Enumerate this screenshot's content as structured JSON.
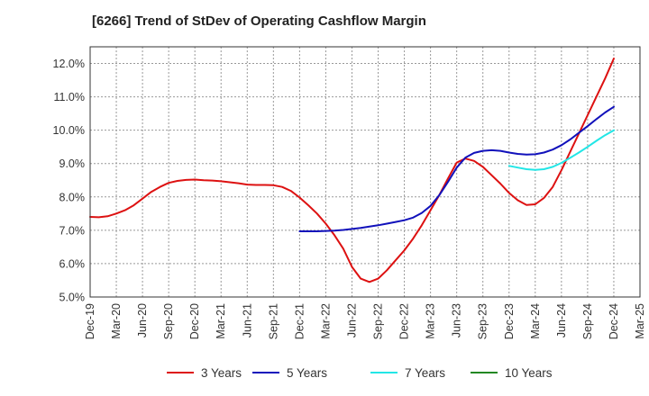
{
  "chart_data": {
    "type": "line",
    "title": "[6266]  Trend of StDev of Operating Cashflow Margin",
    "xlabel": "",
    "ylabel": "",
    "ylim": [
      5.0,
      12.5
    ],
    "yticks": [
      5.0,
      6.0,
      7.0,
      8.0,
      9.0,
      10.0,
      11.0,
      12.0
    ],
    "ytick_labels": [
      "5.0%",
      "6.0%",
      "7.0%",
      "8.0%",
      "9.0%",
      "10.0%",
      "11.0%",
      "12.0%"
    ],
    "x_categories": [
      "Dec-19",
      "Mar-20",
      "Jun-20",
      "Sep-20",
      "Dec-20",
      "Mar-21",
      "Jun-21",
      "Sep-21",
      "Dec-21",
      "Mar-22",
      "Jun-22",
      "Sep-22",
      "Dec-22",
      "Mar-23",
      "Jun-23",
      "Sep-23",
      "Dec-23",
      "Mar-24",
      "Jun-24",
      "Sep-24",
      "Dec-24",
      "Mar-25"
    ],
    "grid": true,
    "legend_position": "bottom",
    "series": [
      {
        "name": "3 Years",
        "color": "#dd1111",
        "points": [
          [
            "Dec-19",
            7.4
          ],
          [
            "Jan-20",
            7.39
          ],
          [
            "Feb-20",
            7.42
          ],
          [
            "Mar-20",
            7.5
          ],
          [
            "Apr-20",
            7.6
          ],
          [
            "May-20",
            7.75
          ],
          [
            "Jun-20",
            7.95
          ],
          [
            "Jul-20",
            8.15
          ],
          [
            "Aug-20",
            8.3
          ],
          [
            "Sep-20",
            8.42
          ],
          [
            "Oct-20",
            8.48
          ],
          [
            "Nov-20",
            8.51
          ],
          [
            "Dec-20",
            8.52
          ],
          [
            "Jan-21",
            8.5
          ],
          [
            "Feb-21",
            8.49
          ],
          [
            "Mar-21",
            8.47
          ],
          [
            "Apr-21",
            8.44
          ],
          [
            "May-21",
            8.41
          ],
          [
            "Jun-21",
            8.37
          ],
          [
            "Jul-21",
            8.36
          ],
          [
            "Aug-21",
            8.36
          ],
          [
            "Sep-21",
            8.35
          ],
          [
            "Oct-21",
            8.3
          ],
          [
            "Nov-21",
            8.18
          ],
          [
            "Dec-21",
            7.98
          ],
          [
            "Jan-22",
            7.75
          ],
          [
            "Feb-22",
            7.5
          ],
          [
            "Mar-22",
            7.2
          ],
          [
            "Apr-22",
            6.85
          ],
          [
            "May-22",
            6.45
          ],
          [
            "Jun-22",
            5.9
          ],
          [
            "Jul-22",
            5.55
          ],
          [
            "Aug-22",
            5.45
          ],
          [
            "Sep-22",
            5.55
          ],
          [
            "Oct-22",
            5.8
          ],
          [
            "Nov-22",
            6.1
          ],
          [
            "Dec-22",
            6.4
          ],
          [
            "Jan-23",
            6.75
          ],
          [
            "Feb-23",
            7.15
          ],
          [
            "Mar-23",
            7.6
          ],
          [
            "Apr-23",
            8.05
          ],
          [
            "May-23",
            8.55
          ],
          [
            "Jun-23",
            9.03
          ],
          [
            "Jul-23",
            9.15
          ],
          [
            "Aug-23",
            9.08
          ],
          [
            "Sep-23",
            8.9
          ],
          [
            "Oct-23",
            8.65
          ],
          [
            "Nov-23",
            8.4
          ],
          [
            "Dec-23",
            8.12
          ],
          [
            "Jan-24",
            7.9
          ],
          [
            "Feb-24",
            7.76
          ],
          [
            "Mar-24",
            7.78
          ],
          [
            "Apr-24",
            7.97
          ],
          [
            "May-24",
            8.3
          ],
          [
            "Jun-24",
            8.8
          ],
          [
            "Jul-24",
            9.35
          ],
          [
            "Aug-24",
            9.9
          ],
          [
            "Sep-24",
            10.45
          ],
          [
            "Oct-24",
            11.0
          ],
          [
            "Nov-24",
            11.55
          ],
          [
            "Dec-24",
            12.15
          ]
        ]
      },
      {
        "name": "5 Years",
        "color": "#1111bb",
        "points": [
          [
            "Dec-21",
            6.97
          ],
          [
            "Jan-22",
            6.97
          ],
          [
            "Feb-22",
            6.97
          ],
          [
            "Mar-22",
            6.98
          ],
          [
            "Apr-22",
            6.99
          ],
          [
            "May-22",
            7.01
          ],
          [
            "Jun-22",
            7.04
          ],
          [
            "Jul-22",
            7.07
          ],
          [
            "Aug-22",
            7.11
          ],
          [
            "Sep-22",
            7.15
          ],
          [
            "Oct-22",
            7.2
          ],
          [
            "Nov-22",
            7.25
          ],
          [
            "Dec-22",
            7.3
          ],
          [
            "Jan-23",
            7.38
          ],
          [
            "Feb-23",
            7.52
          ],
          [
            "Mar-23",
            7.73
          ],
          [
            "Apr-23",
            8.05
          ],
          [
            "May-23",
            8.45
          ],
          [
            "Jun-23",
            8.88
          ],
          [
            "Jul-23",
            9.18
          ],
          [
            "Aug-23",
            9.32
          ],
          [
            "Sep-23",
            9.38
          ],
          [
            "Oct-23",
            9.4
          ],
          [
            "Nov-23",
            9.38
          ],
          [
            "Dec-23",
            9.33
          ],
          [
            "Jan-24",
            9.29
          ],
          [
            "Feb-24",
            9.27
          ],
          [
            "Mar-24",
            9.28
          ],
          [
            "Apr-24",
            9.33
          ],
          [
            "May-24",
            9.42
          ],
          [
            "Jun-24",
            9.55
          ],
          [
            "Jul-24",
            9.72
          ],
          [
            "Aug-24",
            9.92
          ],
          [
            "Sep-24",
            10.12
          ],
          [
            "Oct-24",
            10.33
          ],
          [
            "Nov-24",
            10.53
          ],
          [
            "Dec-24",
            10.7
          ]
        ]
      },
      {
        "name": "7 Years",
        "color": "#22e6e6",
        "points": [
          [
            "Dec-23",
            8.93
          ],
          [
            "Jan-24",
            8.88
          ],
          [
            "Feb-24",
            8.83
          ],
          [
            "Mar-24",
            8.81
          ],
          [
            "Apr-24",
            8.83
          ],
          [
            "May-24",
            8.9
          ],
          [
            "Jun-24",
            9.02
          ],
          [
            "Jul-24",
            9.17
          ],
          [
            "Aug-24",
            9.33
          ],
          [
            "Sep-24",
            9.5
          ],
          [
            "Oct-24",
            9.68
          ],
          [
            "Nov-24",
            9.85
          ],
          [
            "Dec-24",
            10.0
          ]
        ]
      },
      {
        "name": "10 Years",
        "color": "#228822",
        "points": []
      }
    ]
  }
}
